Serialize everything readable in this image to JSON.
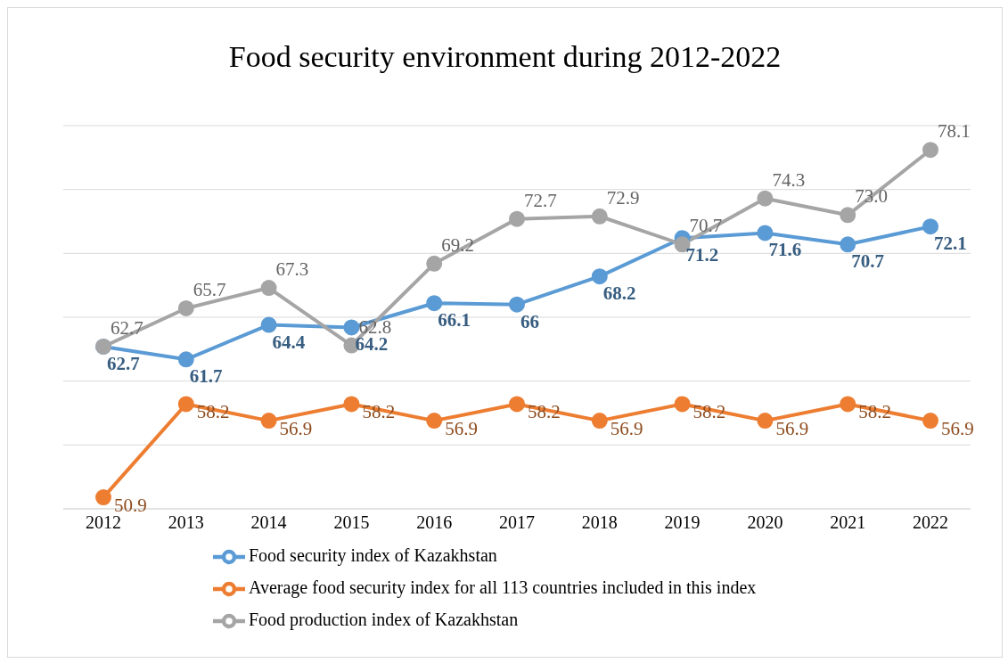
{
  "chart_data": {
    "type": "line",
    "title": "Food security environment during 2012-2022",
    "categories": [
      "2012",
      "2013",
      "2014",
      "2015",
      "2016",
      "2017",
      "2018",
      "2019",
      "2020",
      "2021",
      "2022"
    ],
    "series": [
      {
        "name": "Food security index of Kazakhstan",
        "color": "#5b9bd5",
        "values": [
          62.7,
          61.7,
          64.4,
          64.2,
          66.1,
          66,
          68.2,
          71.2,
          71.6,
          70.7,
          72.1
        ],
        "value_labels": [
          "62.7",
          "61.7",
          "64.4",
          "64.2",
          "66.1",
          "66",
          "68.2",
          "71.2",
          "71.6",
          "70.7",
          "72.1"
        ]
      },
      {
        "name": "Average food security index for all 113 countries included in this index",
        "color": "#ed7d31",
        "values": [
          50.9,
          58.2,
          56.9,
          58.2,
          56.9,
          58.2,
          56.9,
          58.2,
          56.9,
          58.2,
          56.9
        ],
        "value_labels": [
          "50.9",
          "58.2",
          "56.9",
          "58.2",
          "56.9",
          "58.2",
          "56.9",
          "58.2",
          "56.9",
          "58.2",
          "56.9"
        ]
      },
      {
        "name": "Food production index of Kazakhstan",
        "color": "#a5a5a5",
        "values": [
          62.7,
          65.7,
          67.3,
          62.8,
          69.2,
          72.7,
          72.9,
          70.7,
          74.3,
          73.0,
          78.1
        ],
        "value_labels": [
          "62.7",
          "65.7",
          "67.3",
          "62.8",
          "69.2",
          "72.7",
          "72.9",
          "70.7",
          "74.3",
          "73.0",
          "78.1"
        ]
      }
    ],
    "ylim": [
      50,
      80
    ],
    "tick_labels": "x",
    "grid": "y",
    "legend": "bottom",
    "marker": "circle",
    "line_style": "solid"
  }
}
